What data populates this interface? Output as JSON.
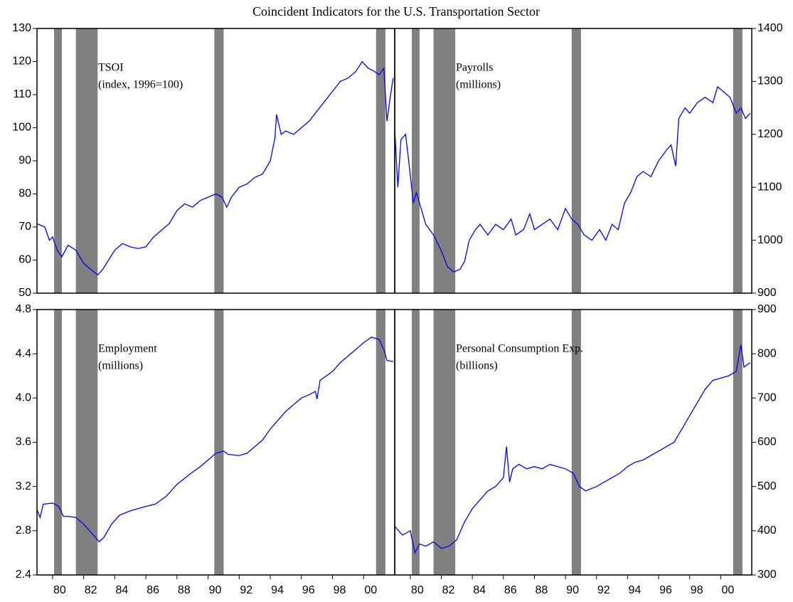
{
  "title": "Coincident Indicators for the U.S. Transportation Sector",
  "chart_data": [
    {
      "type": "line",
      "label": "TSOI",
      "sublabel": "(index, 1996=100)",
      "axis_side": "left",
      "color": "#0000ff",
      "xlim": [
        1979,
        2002
      ],
      "ylim": [
        50,
        130
      ],
      "yticks": [
        50,
        60,
        70,
        80,
        90,
        100,
        110,
        120,
        130
      ],
      "recessions": [
        [
          1980.1,
          1980.6
        ],
        [
          1981.5,
          1982.9
        ],
        [
          1990.4,
          1991.0
        ],
        [
          2000.8,
          2001.4
        ]
      ],
      "x": [
        1979.0,
        1979.5,
        1979.8,
        1980.0,
        1980.3,
        1980.6,
        1981.0,
        1981.5,
        1982.0,
        1982.5,
        1982.9,
        1983.2,
        1983.6,
        1984.0,
        1984.5,
        1985.0,
        1985.5,
        1986.0,
        1986.5,
        1987.0,
        1987.5,
        1988.0,
        1988.5,
        1989.0,
        1989.5,
        1990.0,
        1990.5,
        1990.9,
        1991.2,
        1991.5,
        1992.0,
        1992.5,
        1993.0,
        1993.5,
        1994.0,
        1994.3,
        1994.4,
        1994.7,
        1995.0,
        1995.5,
        1996.0,
        1996.5,
        1997.0,
        1997.5,
        1998.0,
        1998.5,
        1999.0,
        1999.5,
        1999.9,
        2000.3,
        2000.7,
        2001.0,
        2001.3,
        2001.5,
        2001.7,
        2001.9
      ],
      "values": [
        71,
        70,
        66,
        67,
        63,
        61,
        64.5,
        63,
        59,
        57,
        55.5,
        57,
        60,
        63,
        65,
        64,
        63.5,
        64,
        67,
        69,
        71,
        75,
        77,
        76,
        78,
        79,
        80,
        79,
        76,
        79,
        82,
        83,
        85,
        86,
        90,
        97,
        104,
        98,
        99,
        98,
        100,
        102,
        105,
        108,
        111,
        114,
        115,
        117,
        120,
        118,
        117,
        116,
        118,
        102,
        109,
        115
      ]
    },
    {
      "type": "line",
      "label": "Payrolls",
      "sublabel": "(millions)",
      "axis_side": "right",
      "color": "#0000ff",
      "xlim": [
        1979,
        2002
      ],
      "ylim": [
        900,
        1400
      ],
      "yticks": [
        900,
        1000,
        1100,
        1200,
        1300,
        1400
      ],
      "recessions": [
        [
          1980.1,
          1980.6
        ],
        [
          1981.5,
          1982.9
        ],
        [
          1990.4,
          1991.0
        ],
        [
          2000.8,
          2001.4
        ]
      ],
      "x": [
        1979.0,
        1979.2,
        1979.4,
        1979.7,
        1979.9,
        1980.2,
        1980.4,
        1980.7,
        1981.0,
        1981.5,
        1982.0,
        1982.4,
        1982.8,
        1983.2,
        1983.5,
        1983.8,
        1984.2,
        1984.5,
        1985.0,
        1985.5,
        1986.0,
        1986.5,
        1986.8,
        1987.3,
        1987.7,
        1988.0,
        1988.5,
        1989.0,
        1989.5,
        1990.0,
        1990.4,
        1990.8,
        1991.2,
        1991.7,
        1992.2,
        1992.6,
        1993.0,
        1993.4,
        1993.8,
        1994.2,
        1994.6,
        1995.0,
        1995.5,
        1996.0,
        1996.5,
        1996.8,
        1997.1,
        1997.3,
        1997.7,
        1998.0,
        1998.5,
        1999.0,
        1999.5,
        1999.8,
        2000.2,
        2000.6,
        2001.0,
        2001.3,
        2001.6,
        2001.9
      ],
      "values": [
        1210,
        1100,
        1190,
        1200,
        1150,
        1070,
        1090,
        1060,
        1030,
        1010,
        980,
        950,
        940,
        945,
        960,
        1000,
        1020,
        1030,
        1010,
        1030,
        1020,
        1040,
        1010,
        1020,
        1050,
        1020,
        1030,
        1040,
        1020,
        1060,
        1040,
        1030,
        1010,
        1000,
        1020,
        1000,
        1030,
        1020,
        1070,
        1090,
        1120,
        1130,
        1120,
        1150,
        1170,
        1180,
        1140,
        1230,
        1250,
        1240,
        1260,
        1270,
        1260,
        1290,
        1280,
        1270,
        1240,
        1250,
        1230,
        1240
      ]
    },
    {
      "type": "line",
      "label": "Employment",
      "sublabel": "(millions)",
      "axis_side": "left",
      "color": "#0000ff",
      "xlim": [
        1979,
        2002
      ],
      "ylim": [
        2.4,
        4.8
      ],
      "yticks": [
        2.4,
        2.8,
        3.2,
        3.6,
        {
          "value": 4,
          "label": "4.0"
        },
        4.4,
        4.8
      ],
      "xticks": [
        {
          "value": 1980,
          "label": "80"
        },
        {
          "value": 1982,
          "label": "82"
        },
        {
          "value": 1984,
          "label": "84"
        },
        {
          "value": 1986,
          "label": "86"
        },
        {
          "value": 1988,
          "label": "88"
        },
        {
          "value": 1990,
          "label": "90"
        },
        {
          "value": 1992,
          "label": "92"
        },
        {
          "value": 1994,
          "label": "94"
        },
        {
          "value": 1996,
          "label": "96"
        },
        {
          "value": 1998,
          "label": "98"
        },
        {
          "value": 2000,
          "label": "00"
        }
      ],
      "recessions": [
        [
          1980.1,
          1980.6
        ],
        [
          1981.5,
          1982.9
        ],
        [
          1990.4,
          1991.0
        ],
        [
          2000.8,
          2001.4
        ]
      ],
      "x": [
        1979.0,
        1979.2,
        1979.4,
        1980.0,
        1980.4,
        1980.7,
        1981.0,
        1981.5,
        1982.0,
        1982.5,
        1983.0,
        1983.3,
        1983.8,
        1984.3,
        1985.0,
        1986.0,
        1986.6,
        1987.3,
        1988.0,
        1989.0,
        1989.5,
        1990.0,
        1990.5,
        1991.0,
        1991.3,
        1992.0,
        1992.5,
        1993.0,
        1993.5,
        1994.0,
        1994.5,
        1995.0,
        1995.5,
        1996.0,
        1996.5,
        1996.9,
        1997.0,
        1997.2,
        1998.0,
        1998.5,
        1999.0,
        1999.5,
        2000.0,
        2000.5,
        2001.0,
        2001.3,
        2001.5,
        2001.9
      ],
      "values": [
        2.99,
        2.92,
        3.04,
        3.05,
        3.02,
        2.93,
        2.93,
        2.92,
        2.86,
        2.78,
        2.7,
        2.74,
        2.86,
        2.94,
        2.98,
        3.02,
        3.04,
        3.11,
        3.22,
        3.33,
        3.38,
        3.44,
        3.5,
        3.52,
        3.49,
        3.48,
        3.5,
        3.56,
        3.62,
        3.72,
        3.8,
        3.88,
        3.94,
        4.0,
        4.03,
        4.06,
        3.99,
        4.16,
        4.24,
        4.32,
        4.38,
        4.44,
        4.5,
        4.55,
        4.53,
        4.44,
        4.34,
        4.33
      ]
    },
    {
      "type": "line",
      "label": "Personal Consumption Exp.",
      "sublabel": "(billions)",
      "axis_side": "right",
      "color": "#0000ff",
      "xlim": [
        1979,
        2002
      ],
      "ylim": [
        300,
        900
      ],
      "yticks": [
        300,
        400,
        500,
        600,
        700,
        800,
        900
      ],
      "xticks": [
        {
          "value": 1980,
          "label": "80"
        },
        {
          "value": 1982,
          "label": "82"
        },
        {
          "value": 1984,
          "label": "84"
        },
        {
          "value": 1986,
          "label": "86"
        },
        {
          "value": 1988,
          "label": "88"
        },
        {
          "value": 1990,
          "label": "90"
        },
        {
          "value": 1992,
          "label": "92"
        },
        {
          "value": 1994,
          "label": "94"
        },
        {
          "value": 1996,
          "label": "96"
        },
        {
          "value": 1998,
          "label": "98"
        },
        {
          "value": 2000,
          "label": "00"
        }
      ],
      "recessions": [
        [
          1980.1,
          1980.6
        ],
        [
          1981.5,
          1982.9
        ],
        [
          1990.4,
          1991.0
        ],
        [
          2000.8,
          2001.4
        ]
      ],
      "x": [
        1979.0,
        1979.5,
        1980.0,
        1980.3,
        1980.6,
        1981.0,
        1981.5,
        1982.0,
        1982.5,
        1983.0,
        1983.5,
        1984.0,
        1984.5,
        1985.0,
        1985.5,
        1986.0,
        1986.2,
        1986.4,
        1986.6,
        1987.0,
        1987.5,
        1988.0,
        1988.5,
        1989.0,
        1989.5,
        1990.0,
        1990.5,
        1990.9,
        1991.3,
        1992.0,
        1992.5,
        1993.0,
        1993.5,
        1994.0,
        1994.5,
        1995.0,
        1995.5,
        1996.0,
        1996.5,
        1997.0,
        1997.5,
        1998.0,
        1998.5,
        1999.0,
        1999.5,
        2000.0,
        2000.5,
        2001.0,
        2001.3,
        2001.5,
        2001.9
      ],
      "values": [
        410,
        390,
        400,
        350,
        370,
        365,
        375,
        360,
        365,
        380,
        420,
        450,
        470,
        490,
        500,
        520,
        590,
        510,
        540,
        550,
        540,
        545,
        540,
        550,
        545,
        540,
        530,
        500,
        490,
        500,
        510,
        520,
        530,
        545,
        555,
        560,
        570,
        580,
        590,
        600,
        630,
        660,
        690,
        720,
        740,
        745,
        750,
        760,
        820,
        770,
        780
      ]
    }
  ]
}
